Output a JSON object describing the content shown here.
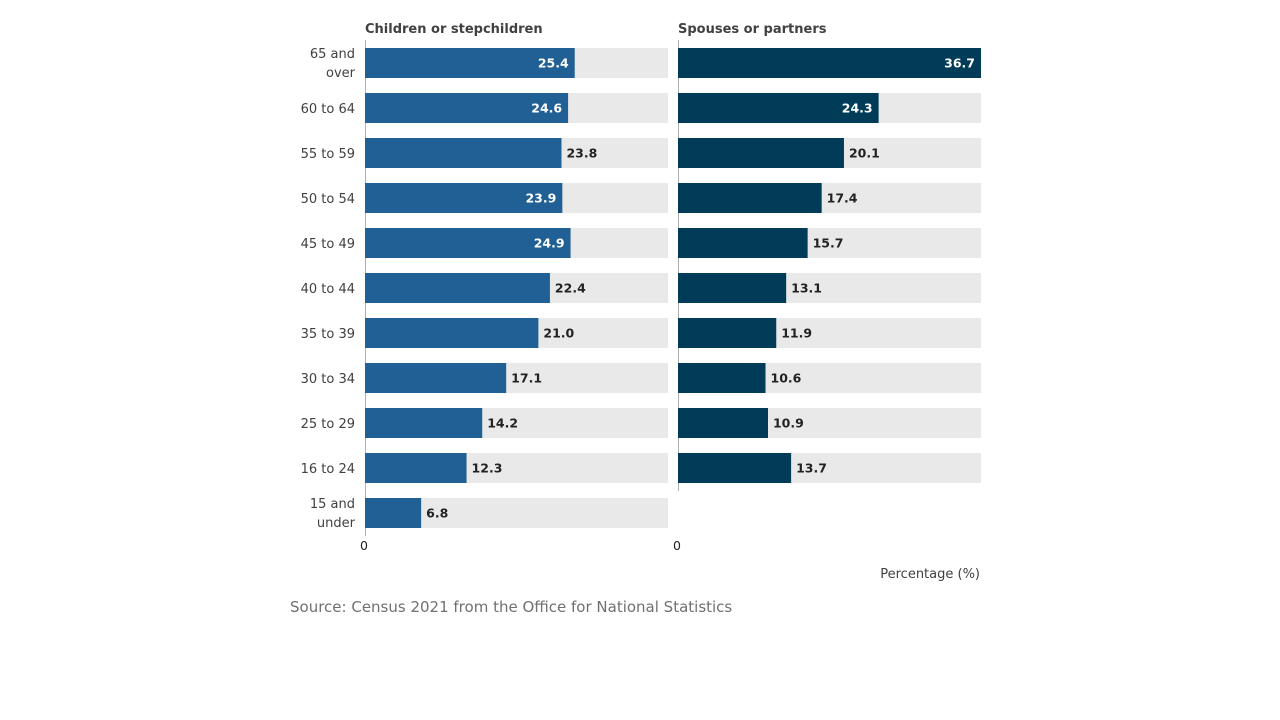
{
  "chart_data": {
    "type": "bar",
    "orientation": "horizontal",
    "xlabel": "Percentage (%)",
    "panels": [
      {
        "title": "Children or stepchildren",
        "categories": [
          "65 and over",
          "60 to 64",
          "55 to 59",
          "50 to 54",
          "45 to 49",
          "40 to 44",
          "35 to 39",
          "30 to 34",
          "25 to 29",
          "16 to 24",
          "15 and under"
        ],
        "values": [
          25.4,
          24.6,
          23.8,
          23.9,
          24.9,
          22.4,
          21.0,
          17.1,
          14.2,
          12.3,
          6.8
        ],
        "value_labels": [
          "25.4",
          "24.6",
          "23.8",
          "23.9",
          "24.9",
          "22.4",
          "21.0",
          "17.1",
          "14.2",
          "12.3",
          "6.8"
        ],
        "xlim": [
          0,
          36.7
        ],
        "x_tick_labels": [
          "0"
        ],
        "color": "#206095"
      },
      {
        "title": "Spouses or partners",
        "categories": [
          "65 and over",
          "60 to 64",
          "55 to 59",
          "50 to 54",
          "45 to 49",
          "40 to 44",
          "35 to 39",
          "30 to 34",
          "25 to 29",
          "16 to 24"
        ],
        "values": [
          36.7,
          24.3,
          20.1,
          17.4,
          15.7,
          13.1,
          11.9,
          10.6,
          10.9,
          13.7
        ],
        "value_labels": [
          "36.7",
          "24.3",
          "20.1",
          "17.4",
          "15.7",
          "13.1",
          "11.9",
          "10.6",
          "10.9",
          "13.7"
        ],
        "xlim": [
          0,
          36.7
        ],
        "x_tick_labels": [
          "0"
        ],
        "color": "#003c57"
      }
    ],
    "category_labels": [
      [
        "65 and",
        "over"
      ],
      [
        "60 to 64"
      ],
      [
        "55 to 59"
      ],
      [
        "50 to 54"
      ],
      [
        "45 to 49"
      ],
      [
        "40 to 44"
      ],
      [
        "35 to 39"
      ],
      [
        "30 to 34"
      ],
      [
        "25 to 29"
      ],
      [
        "16 to 24"
      ],
      [
        "15 and",
        "under"
      ]
    ],
    "background_bar_color": "#e9e9e9",
    "grid": false,
    "legend": "none"
  },
  "source": "Source: Census 2021 from the Office for National Statistics"
}
